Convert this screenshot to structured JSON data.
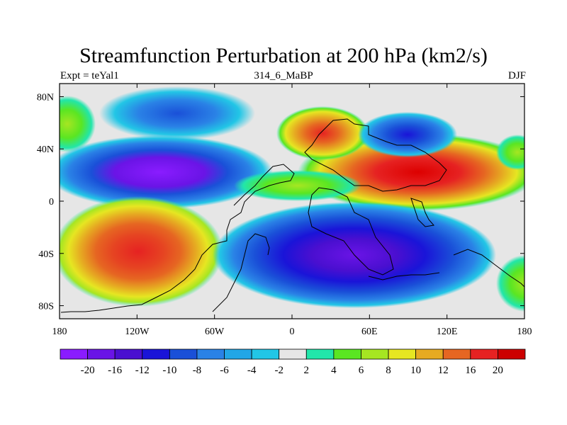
{
  "header": {
    "title": "Streamfunction Perturbation at 200 hPa (km2/s)",
    "left_label": "Expt = teYal1",
    "center_label": "314_6_MaBP",
    "right_label": "DJF"
  },
  "map": {
    "y_axis_labels": [
      "80N",
      "40N",
      "0",
      "40S",
      "80S"
    ],
    "x_axis_labels": [
      "180",
      "120W",
      "60W",
      "0",
      "60E",
      "120E",
      "180"
    ],
    "projection": "cylindrical equidistant",
    "lon_range": [
      -180,
      180
    ],
    "lat_range": [
      -90,
      90
    ]
  },
  "colorbar": {
    "labels": [
      "-20",
      "-16",
      "-12",
      "-10",
      "-8",
      "-6",
      "-4",
      "-2",
      "2",
      "4",
      "6",
      "8",
      "10",
      "12",
      "16",
      "20"
    ],
    "colors": [
      "#8a1cff",
      "#6a14e6",
      "#4a0fd0",
      "#1a14d8",
      "#1a50d8",
      "#2a82e6",
      "#22a6e6",
      "#22c6e6",
      "#e6e6e6",
      "#22e6aa",
      "#5ae622",
      "#a6e622",
      "#e6e622",
      "#e6aa22",
      "#e66622",
      "#e62222",
      "#cc0000"
    ]
  }
}
